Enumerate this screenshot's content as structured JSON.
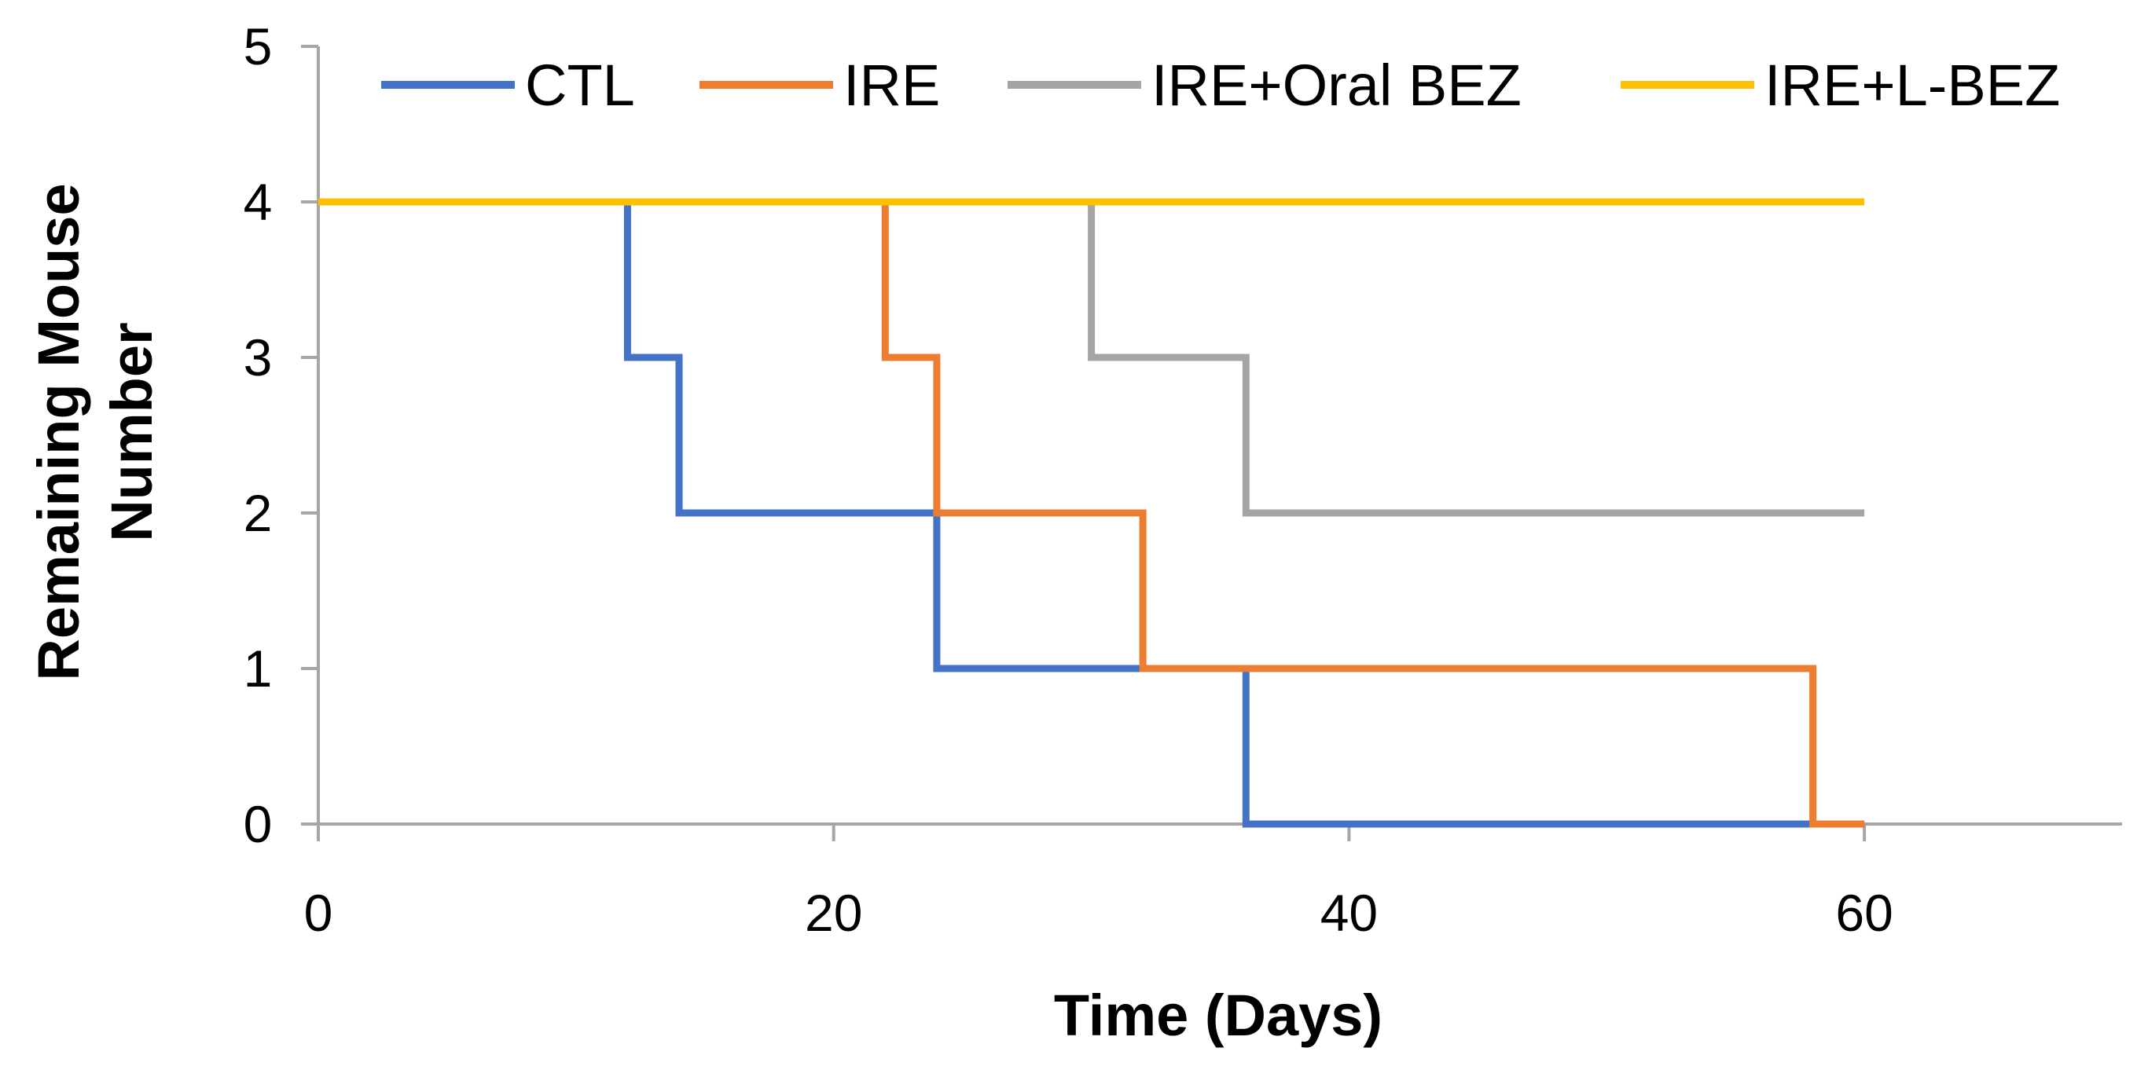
{
  "chart_data": {
    "type": "line",
    "subtype": "step",
    "title": "",
    "xlabel": "Time (Days)",
    "ylabel_lines": [
      "Remaining Mouse",
      "Number"
    ],
    "xlim": [
      0,
      70
    ],
    "ylim": [
      0,
      5
    ],
    "xticks": [
      0,
      20,
      40,
      60
    ],
    "yticks": [
      0,
      1,
      2,
      3,
      4,
      5
    ],
    "xtick_labels": [
      "0",
      "20",
      "40",
      "60"
    ],
    "ytick_labels": [
      "0",
      "1",
      "2",
      "3",
      "4",
      "5"
    ],
    "grid": false,
    "legend_position": "top",
    "series": [
      {
        "name": "CTL",
        "color": "#4472c4",
        "points": [
          [
            0,
            4
          ],
          [
            12,
            4
          ],
          [
            12,
            3
          ],
          [
            14,
            3
          ],
          [
            14,
            2
          ],
          [
            24,
            2
          ],
          [
            24,
            1
          ],
          [
            36,
            1
          ],
          [
            36,
            0
          ],
          [
            60,
            0
          ]
        ]
      },
      {
        "name": "IRE",
        "color": "#ed7d31",
        "points": [
          [
            0,
            4
          ],
          [
            22,
            4
          ],
          [
            22,
            3
          ],
          [
            24,
            3
          ],
          [
            24,
            2
          ],
          [
            32,
            2
          ],
          [
            32,
            1
          ],
          [
            58,
            1
          ],
          [
            58,
            0
          ],
          [
            60,
            0
          ]
        ]
      },
      {
        "name": "IRE+Oral BEZ",
        "color": "#a5a5a5",
        "points": [
          [
            0,
            4
          ],
          [
            30,
            4
          ],
          [
            30,
            3
          ],
          [
            36,
            3
          ],
          [
            36,
            2
          ],
          [
            60,
            2
          ]
        ]
      },
      {
        "name": "IRE+L-BEZ",
        "color": "#ffc000",
        "points": [
          [
            0,
            4
          ],
          [
            60,
            4
          ]
        ]
      }
    ]
  }
}
